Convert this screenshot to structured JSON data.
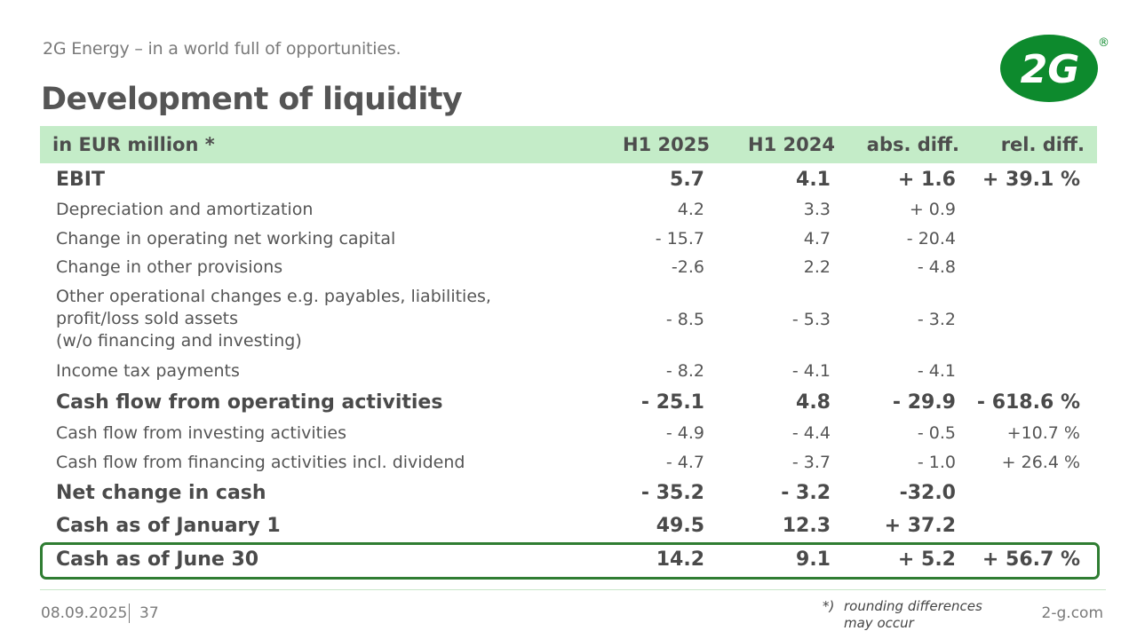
{
  "header": {
    "subtitle": "2G Energy – in a world full of opportunities.",
    "title": "Development of liquidity",
    "logo_text": "2G",
    "logo_mark": "®"
  },
  "colors": {
    "header_bg": "#c4ecc8",
    "logo_green": "#0d8a2d",
    "highlight_border": "#2f7d32"
  },
  "table": {
    "columns": [
      "in EUR million *",
      "H1 2025",
      "H1 2024",
      "abs. diff.",
      "rel. diff."
    ],
    "rows": [
      {
        "label": "EBIT",
        "h1_2025": "5.7",
        "h1_2024": "4.1",
        "abs": "+ 1.6",
        "rel": "+ 39.1 %"
      },
      {
        "label": "Depreciation and amortization",
        "h1_2025": "4.2",
        "h1_2024": "3.3",
        "abs": "+ 0.9",
        "rel": ""
      },
      {
        "label": "Change in operating net working capital",
        "h1_2025": "- 15.7",
        "h1_2024": "4.7",
        "abs": "- 20.4",
        "rel": ""
      },
      {
        "label": "Change in other provisions",
        "h1_2025": "-2.6",
        "h1_2024": "2.2",
        "abs": "- 4.8",
        "rel": ""
      },
      {
        "label": "Other operational changes e.g. payables, liabilities,\nprofit/loss sold assets\n(w/o financing and investing)",
        "h1_2025": "- 8.5",
        "h1_2024": "- 5.3",
        "abs": "- 3.2",
        "rel": ""
      },
      {
        "label": "Income tax payments",
        "h1_2025": "- 8.2",
        "h1_2024": "- 4.1",
        "abs": "- 4.1",
        "rel": ""
      },
      {
        "label": "Cash flow from operating activities",
        "h1_2025": "- 25.1",
        "h1_2024": "4.8",
        "abs": "- 29.9",
        "rel": "- 618.6 %"
      },
      {
        "label": "Cash flow from investing activities",
        "h1_2025": "- 4.9",
        "h1_2024": "- 4.4",
        "abs": "- 0.5",
        "rel": "+10.7 %"
      },
      {
        "label": "Cash flow from financing activities incl. dividend",
        "h1_2025": "- 4.7",
        "h1_2024": "- 3.7",
        "abs": "- 1.0",
        "rel": "+ 26.4 %"
      },
      {
        "label": "Net change in cash",
        "h1_2025": "- 35.2",
        "h1_2024": "- 3.2",
        "abs": "-32.0",
        "rel": ""
      },
      {
        "label": "Cash as of January 1",
        "h1_2025": "49.5",
        "h1_2024": "12.3",
        "abs": "+ 37.2",
        "rel": ""
      },
      {
        "label": "Cash as of June 30",
        "h1_2025": "14.2",
        "h1_2024": "9.1",
        "abs": "+ 5.2",
        "rel": "+ 56.7 %"
      }
    ]
  },
  "footer": {
    "date": "08.09.2025",
    "page": "37",
    "footnote_mark": "*)",
    "footnote_text": "rounding differences may occur",
    "url": "2-g.com"
  }
}
